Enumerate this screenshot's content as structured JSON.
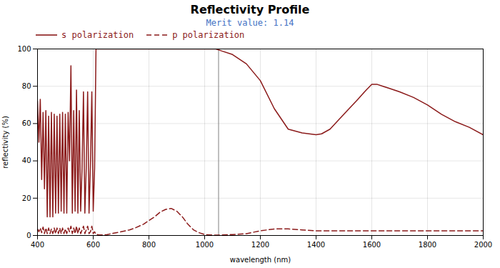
{
  "chart_data": {
    "type": "line",
    "title": "Reflectivity Profile",
    "subtitle": "Merit value: 1.14",
    "subtitle_color": "#4472C4",
    "xlabel": "wavelength (nm)",
    "ylabel": "reflectivity (%)",
    "xlim": [
      400,
      2000
    ],
    "ylim": [
      0,
      100
    ],
    "xticks": [
      400,
      600,
      800,
      1000,
      1200,
      1400,
      1600,
      1800,
      2000
    ],
    "yticks": [
      0,
      20,
      40,
      60,
      80,
      100
    ],
    "grid": true,
    "legend": "upper left",
    "annotations": [
      {
        "type": "vline",
        "x": 1050,
        "color": "#808080"
      }
    ],
    "series": [
      {
        "name": "s polarization",
        "color": "#8B1A1A",
        "line_style": "solid",
        "x": [
          400,
          405,
          410,
          415,
          420,
          425,
          430,
          435,
          440,
          445,
          450,
          455,
          460,
          465,
          470,
          475,
          480,
          485,
          490,
          495,
          500,
          505,
          510,
          515,
          520,
          525,
          530,
          535,
          540,
          545,
          550,
          555,
          560,
          565,
          570,
          575,
          580,
          585,
          590,
          595,
          600,
          605,
          610,
          615,
          620,
          630,
          650,
          700,
          750,
          800,
          850,
          900,
          950,
          1000,
          1020,
          1040,
          1050,
          1060,
          1100,
          1150,
          1200,
          1250,
          1300,
          1350,
          1400,
          1420,
          1450,
          1500,
          1550,
          1580,
          1600,
          1620,
          1640,
          1660,
          1700,
          1750,
          1800,
          1850,
          1900,
          1950,
          2000
        ],
        "values": [
          72,
          50,
          73,
          30,
          66,
          25,
          67,
          10,
          64,
          10,
          66,
          10,
          65,
          12,
          64,
          12,
          65,
          13,
          66,
          12,
          65,
          12,
          66,
          40,
          91,
          12,
          67,
          13,
          78,
          12,
          67,
          13,
          36,
          77,
          12,
          36,
          77,
          12,
          37,
          77,
          13,
          36,
          100,
          100,
          100,
          100,
          100,
          100,
          100,
          100,
          100,
          100,
          100,
          100,
          100,
          100,
          99.5,
          99,
          97,
          92,
          83,
          68,
          57,
          55,
          54,
          54.5,
          57,
          65,
          73,
          78,
          81,
          81,
          80,
          79,
          77,
          74,
          70,
          65,
          61,
          58,
          54
        ]
      },
      {
        "name": "p polarization",
        "color": "#8B1A1A",
        "line_style": "dashed",
        "x": [
          400,
          405,
          410,
          415,
          420,
          425,
          430,
          435,
          440,
          445,
          450,
          455,
          460,
          465,
          470,
          475,
          480,
          485,
          490,
          495,
          500,
          505,
          510,
          515,
          520,
          525,
          530,
          535,
          540,
          545,
          550,
          555,
          560,
          565,
          570,
          575,
          580,
          585,
          590,
          595,
          600,
          605,
          610,
          615,
          620,
          630,
          650,
          700,
          730,
          750,
          780,
          800,
          820,
          840,
          860,
          880,
          900,
          920,
          940,
          960,
          980,
          1000,
          1020,
          1040,
          1050,
          1060,
          1100,
          1150,
          1200,
          1250,
          1300,
          1350,
          1400,
          1450,
          1500,
          1550,
          1600,
          1650,
          1700,
          1750,
          1800,
          1850,
          1900,
          1950,
          2000
        ],
        "values": [
          3.5,
          2,
          4,
          1.5,
          4.5,
          1,
          4,
          1,
          4,
          1,
          3.5,
          1,
          4,
          1,
          4,
          1,
          4,
          1,
          4,
          1,
          3.5,
          1,
          4,
          2,
          5,
          1,
          4,
          1,
          5,
          1,
          4,
          1,
          3,
          5,
          1,
          3,
          5,
          1,
          2,
          5,
          1,
          2,
          0.5,
          0.5,
          0.3,
          0.3,
          0.5,
          2,
          3,
          4,
          6,
          8,
          10,
          12.5,
          14,
          14.5,
          13,
          10,
          6,
          3,
          1.5,
          0.5,
          0.3,
          0.2,
          0.2,
          0.3,
          0.5,
          1,
          2.5,
          3.5,
          3.5,
          3,
          2.5,
          2.5,
          2.5,
          2.5,
          2.5,
          2.5,
          2.5,
          2.5,
          2.5,
          2.5,
          2.5,
          2.5,
          2.5
        ]
      }
    ]
  }
}
